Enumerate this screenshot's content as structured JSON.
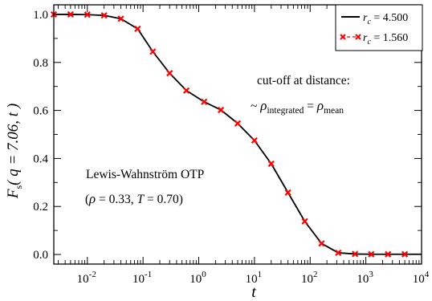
{
  "chart_data": {
    "type": "line",
    "xscale": "log",
    "xlim": [
      0.0025,
      10000
    ],
    "ylim": [
      -0.04,
      1.04
    ],
    "grid": false,
    "legend_position": "top-right",
    "xlabel": {
      "text": "t"
    },
    "ylabel": {
      "main": "F",
      "sub": "s",
      "args": "( q = 7.06, t )"
    },
    "x_ticks": [
      {
        "base": "10",
        "exp": "-2",
        "value": 0.01
      },
      {
        "base": "10",
        "exp": "-1",
        "value": 0.1
      },
      {
        "base": "10",
        "exp": "0",
        "value": 1
      },
      {
        "base": "10",
        "exp": "1",
        "value": 10
      },
      {
        "base": "10",
        "exp": "2",
        "value": 100
      },
      {
        "base": "10",
        "exp": "3",
        "value": 1000
      },
      {
        "base": "10",
        "exp": "4",
        "value": 10000
      }
    ],
    "y_ticks": [
      {
        "label": "0.0",
        "value": 0.0
      },
      {
        "label": "0.2",
        "value": 0.2
      },
      {
        "label": "0.4",
        "value": 0.4
      },
      {
        "label": "0.6",
        "value": 0.6
      },
      {
        "label": "0.8",
        "value": 0.8
      },
      {
        "label": "1.0",
        "value": 1.0
      }
    ],
    "series": [
      {
        "name": "r_c = 4.500",
        "legend_var": "r",
        "legend_sub": "c",
        "legend_value": " = 4.500",
        "color": "#000000",
        "style": "solid-line",
        "x": [
          0.0025,
          0.005,
          0.01,
          0.02,
          0.04,
          0.08,
          0.15,
          0.3,
          0.6,
          1.25,
          2.5,
          5,
          10,
          20,
          40,
          80,
          160,
          320,
          640,
          1250,
          2500,
          5000,
          10000
        ],
        "y": [
          1.0,
          1.0,
          0.999,
          0.996,
          0.982,
          0.94,
          0.845,
          0.755,
          0.683,
          0.636,
          0.602,
          0.546,
          0.475,
          0.378,
          0.258,
          0.138,
          0.046,
          0.007,
          0.002,
          0.001,
          0.001,
          0.001,
          0.001
        ]
      },
      {
        "name": "r_c = 1.560",
        "legend_var": "r",
        "legend_sub": "c",
        "legend_value": " = 1.560",
        "color": "#ff0000",
        "line_color": "#ff0000",
        "style": "dashed-line-x-markers",
        "x": [
          0.0025,
          0.005,
          0.01,
          0.02,
          0.04,
          0.08,
          0.15,
          0.3,
          0.6,
          1.25,
          2.5,
          5,
          10,
          20,
          40,
          80,
          160,
          320,
          640,
          1250,
          2500,
          5000
        ],
        "y": [
          1.0,
          1.0,
          0.999,
          0.996,
          0.982,
          0.94,
          0.845,
          0.755,
          0.683,
          0.636,
          0.602,
          0.546,
          0.475,
          0.378,
          0.258,
          0.138,
          0.046,
          0.007,
          0.002,
          0.001,
          0.001,
          0.001
        ]
      }
    ],
    "annotations": {
      "cutoff_line1": "cut-off at distance:",
      "cutoff_tilde": "~ ",
      "cutoff_rho1": "ρ",
      "cutoff_sub1": "integrated",
      "cutoff_eq": " = ",
      "cutoff_rho2": "ρ",
      "cutoff_sub2": "mean",
      "system_line1": "Lewis-Wahnström OTP",
      "system_line2_open": "(",
      "system_rho": "ρ",
      "system_rho_val": " = 0.33, ",
      "system_T": "T",
      "system_T_val": " = 0.70)"
    }
  }
}
